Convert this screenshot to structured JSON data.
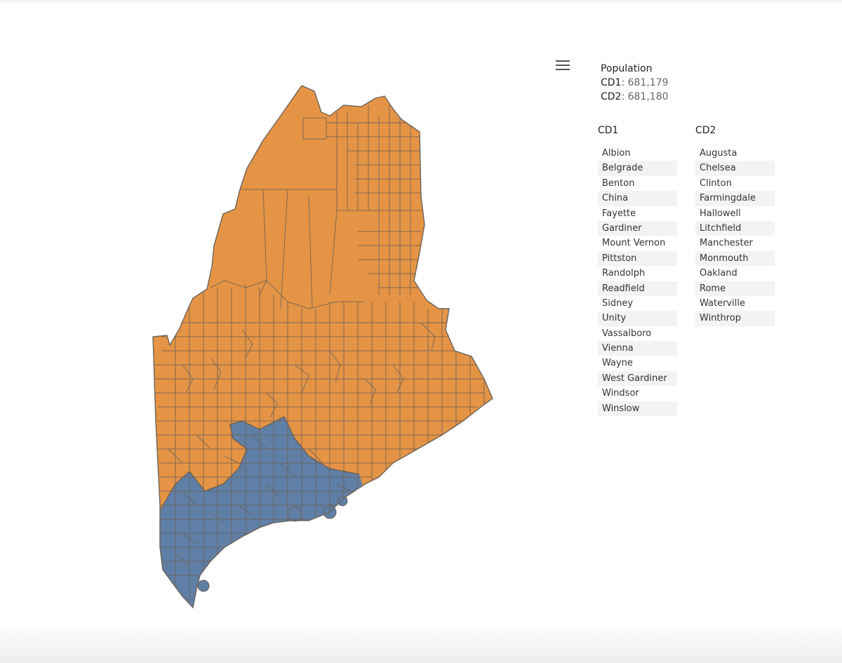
{
  "legend": {
    "title": "Population",
    "cd1_label": "CD1",
    "cd1_value": ": 681,179",
    "cd2_label": "CD2",
    "cd2_value": ": 681,180"
  },
  "menu_icon": "hamburger-menu-icon",
  "colors": {
    "cd2_fill": "#E59445",
    "cd1_fill": "#5F7FA6",
    "border": "#6b6258"
  },
  "lists": {
    "cd1": {
      "heading": "CD1",
      "towns": [
        "Albion",
        "Belgrade",
        "Benton",
        "China",
        "Fayette",
        "Gardiner",
        "Mount Vernon",
        "Pittston",
        "Randolph",
        "Readfield",
        "Sidney",
        "Unity",
        "Vassalboro",
        "Vienna",
        "Wayne",
        "West Gardiner",
        "Windsor",
        "Winslow"
      ]
    },
    "cd2": {
      "heading": "CD2",
      "towns": [
        "Augusta",
        "Chelsea",
        "Clinton",
        "Farmingdale",
        "Hallowell",
        "Litchfield",
        "Manchester",
        "Monmouth",
        "Oakland",
        "Rome",
        "Waterville",
        "Winthrop"
      ]
    }
  }
}
